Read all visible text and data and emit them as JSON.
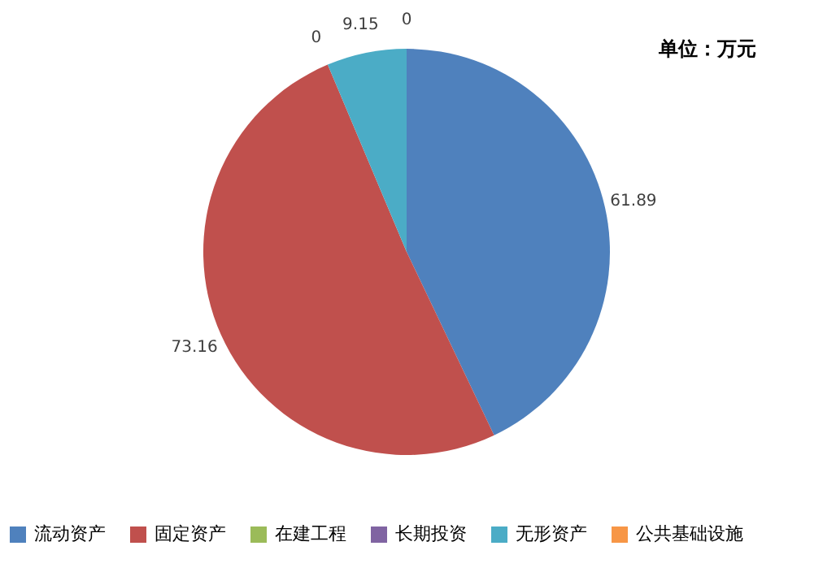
{
  "chart_data": {
    "type": "pie",
    "categories": [
      "流动资产",
      "固定资产",
      "在建工程",
      "长期投资",
      "无形资产",
      "公共基础设施"
    ],
    "values": [
      61.89,
      73.16,
      0,
      0,
      9.15,
      0
    ],
    "colors": [
      "#4f81bd",
      "#c0504d",
      "#9bbb59",
      "#8064a2",
      "#4bacc6",
      "#f79646"
    ],
    "value_labels": [
      "61.89",
      "73.16",
      "0",
      null,
      "9.15",
      "0"
    ],
    "annotations": [
      "单位：万元"
    ],
    "legend": "bottom"
  }
}
